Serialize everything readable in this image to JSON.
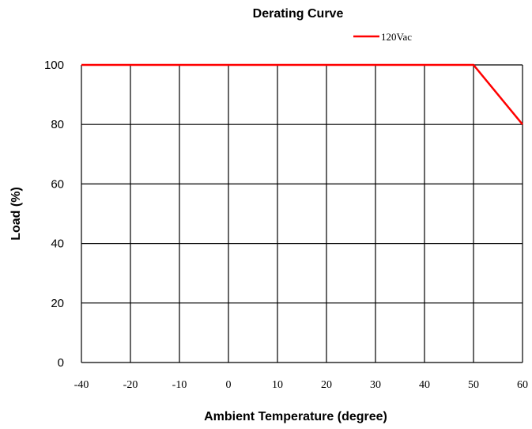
{
  "chart_data": {
    "type": "line",
    "title": "Derating Curve",
    "xlabel": "Ambient Temperature (degree)",
    "ylabel": "Load (%)",
    "x_ticks": [
      "-40",
      "-20",
      "-10",
      "0",
      "10",
      "20",
      "30",
      "40",
      "50",
      "60"
    ],
    "y_ticks": [
      "0",
      "20",
      "40",
      "60",
      "80",
      "100"
    ],
    "ylim": [
      0,
      100
    ],
    "grid": true,
    "legend_position": "top-right",
    "series": [
      {
        "name": "120Vac",
        "color": "#ff0000",
        "points": [
          {
            "x": -40,
            "y": 100
          },
          {
            "x": 50,
            "y": 100
          },
          {
            "x": 60,
            "y": 80
          }
        ]
      }
    ]
  }
}
